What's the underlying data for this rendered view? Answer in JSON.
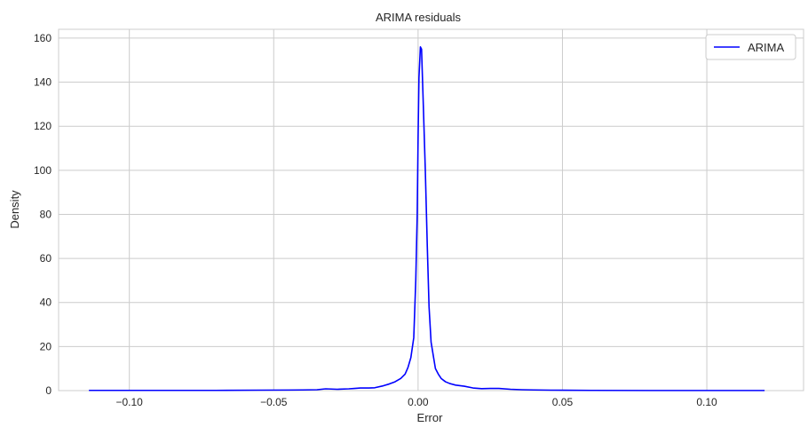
{
  "chart_data": {
    "type": "line",
    "title": "ARIMA residuals",
    "xlabel": "Error",
    "ylabel": "Density",
    "xlim": [
      -0.1245,
      0.1335
    ],
    "ylim": [
      0,
      164
    ],
    "xticks": [
      -0.1,
      -0.05,
      0.0,
      0.05,
      0.1
    ],
    "xtick_labels": [
      "−0.10",
      "−0.05",
      "0.00",
      "0.05",
      "0.10"
    ],
    "yticks": [
      0,
      20,
      40,
      60,
      80,
      100,
      120,
      140,
      160
    ],
    "ytick_labels": [
      "0",
      "20",
      "40",
      "60",
      "80",
      "100",
      "120",
      "140",
      "160"
    ],
    "grid": true,
    "legend_position": "top-right",
    "series": [
      {
        "name": "ARIMA",
        "color": "#0000ff",
        "points": [
          [
            -0.114,
            0.1
          ],
          [
            -0.09,
            0.1
          ],
          [
            -0.07,
            0.1
          ],
          [
            -0.055,
            0.2
          ],
          [
            -0.045,
            0.25
          ],
          [
            -0.04,
            0.3
          ],
          [
            -0.035,
            0.4
          ],
          [
            -0.032,
            0.8
          ],
          [
            -0.028,
            0.6
          ],
          [
            -0.024,
            0.8
          ],
          [
            -0.022,
            1.0
          ],
          [
            -0.02,
            1.2
          ],
          [
            -0.017,
            1.2
          ],
          [
            -0.015,
            1.3
          ],
          [
            -0.012,
            2.2
          ],
          [
            -0.01,
            3.0
          ],
          [
            -0.008,
            4.0
          ],
          [
            -0.006,
            5.5
          ],
          [
            -0.0045,
            7.5
          ],
          [
            -0.0035,
            10.5
          ],
          [
            -0.0025,
            15
          ],
          [
            -0.0015,
            24
          ],
          [
            -0.0008,
            50
          ],
          [
            -0.0003,
            80
          ],
          [
            0.0,
            115
          ],
          [
            0.0003,
            142
          ],
          [
            0.0008,
            156
          ],
          [
            0.0012,
            155
          ],
          [
            0.0018,
            130
          ],
          [
            0.0025,
            100
          ],
          [
            0.0032,
            65
          ],
          [
            0.0038,
            38
          ],
          [
            0.0045,
            22
          ],
          [
            0.005,
            18
          ],
          [
            0.0055,
            14
          ],
          [
            0.006,
            10
          ],
          [
            0.007,
            7.5
          ],
          [
            0.008,
            5.5
          ],
          [
            0.0095,
            4.0
          ],
          [
            0.011,
            3.2
          ],
          [
            0.013,
            2.5
          ],
          [
            0.016,
            2.0
          ],
          [
            0.019,
            1.2
          ],
          [
            0.022,
            0.9
          ],
          [
            0.025,
            1.0
          ],
          [
            0.028,
            1.0
          ],
          [
            0.032,
            0.6
          ],
          [
            0.036,
            0.4
          ],
          [
            0.04,
            0.3
          ],
          [
            0.046,
            0.2
          ],
          [
            0.06,
            0.1
          ],
          [
            0.08,
            0.05
          ],
          [
            0.1,
            0.05
          ],
          [
            0.12,
            0.05
          ]
        ]
      }
    ]
  }
}
